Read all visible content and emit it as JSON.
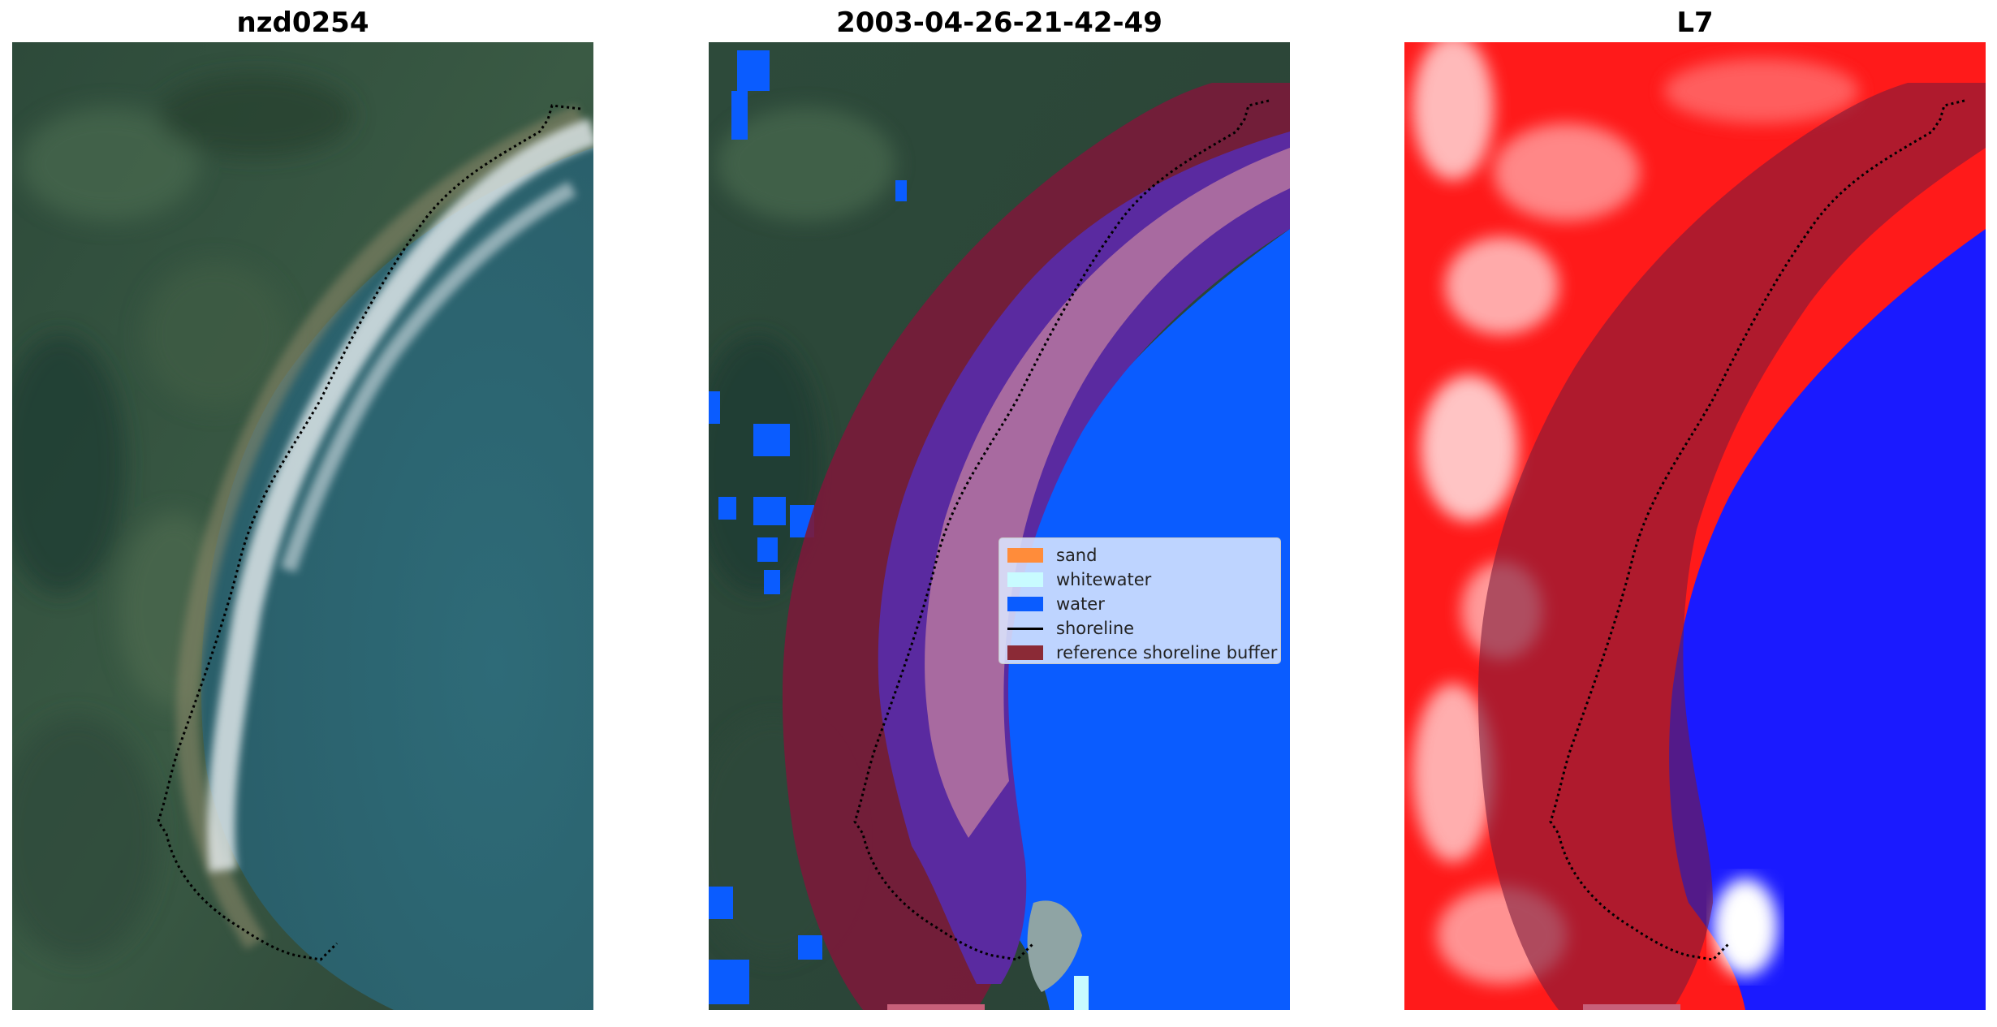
{
  "panels": {
    "left": {
      "title": "nzd0254"
    },
    "middle": {
      "title": "2003-04-26-21-42-49"
    },
    "right": {
      "title": "L7"
    }
  },
  "legend": {
    "items": [
      {
        "label": "sand",
        "color": "#ff8c3a",
        "kind": "patch"
      },
      {
        "label": "whitewater",
        "color": "#c8fbff",
        "kind": "patch"
      },
      {
        "label": "water",
        "color": "#0a5cff",
        "kind": "patch"
      },
      {
        "label": "shoreline",
        "color": "#000000",
        "kind": "line"
      },
      {
        "label": "reference shoreline buffer",
        "color": "#8b2a36",
        "kind": "patch"
      }
    ]
  },
  "colors": {
    "buffer": "#7a1a3a",
    "water": "#0a5cff",
    "land_red": "#ff1a1a",
    "index_blue": "#1a1aff",
    "satellite_forest": "#2f4a3c",
    "satellite_ocean": "#2a6470"
  }
}
